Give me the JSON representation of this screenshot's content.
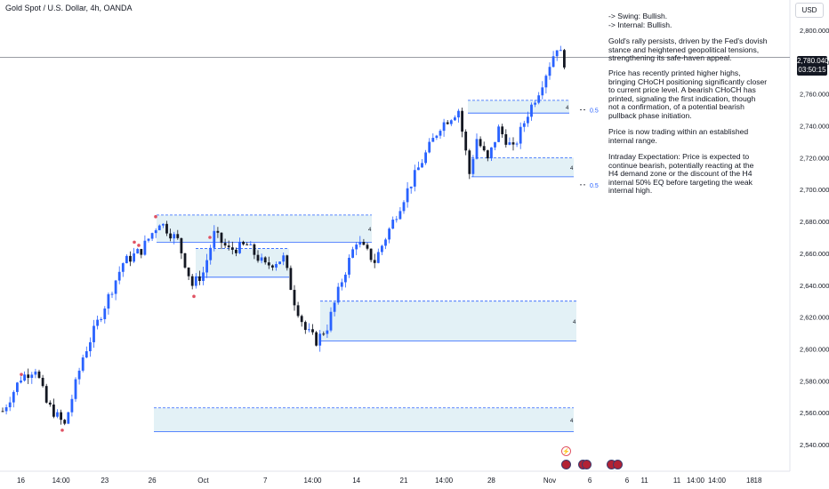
{
  "title": "Gold Spot / U.S. Dollar, 4h, OANDA",
  "currency": "USD",
  "last_price": "2,780.040",
  "countdown": "03:50:15",
  "notes": [
    [
      "-> Swing:  Bullish.",
      "-> Internal:  Bullish."
    ],
    [
      "Gold's rally persists, driven by the Fed's dovish",
      "stance and heightened geopolitical tensions,",
      "strengthening its safe-haven appeal."
    ],
    [
      "Price has recently printed higher highs,",
      "bringing CHoCH positioning significantly closer",
      "to current price level. A bearish CHoCH has",
      "printed, signaling the first indication, though",
      "not a confirmation, of a potential bearish",
      "pullback phase initiation."
    ],
    [
      "Price is now trading within an established",
      "internal range."
    ],
    [
      "Intraday Expectation: Price is expected to",
      "continue bearish, potentially reacting at the",
      "H4 demand zone or the discount of the H4",
      "internal 50% EQ before targeting the weak",
      "internal high."
    ]
  ],
  "colors": {
    "up": "#2962ff",
    "down": "#131722",
    "zone": "#e3f1f6",
    "zone_line": "#2962ff",
    "pivot": "#e05263"
  },
  "chart_data": {
    "type": "candlestick",
    "title": "Gold Spot / U.S. Dollar, 4h, OANDA",
    "y_axis": {
      "min": 2530,
      "max": 2810,
      "ticks": [
        2540,
        2560,
        2580,
        2600,
        2620,
        2640,
        2660,
        2680,
        2700,
        2720,
        2740,
        2760,
        2780,
        2800
      ],
      "tick_labels": [
        "2,540.000",
        "2,560.000",
        "2,580.000",
        "2,600.000",
        "2,620.000",
        "2,640.000",
        "2,660.000",
        "2,680.000",
        "2,700.000",
        "2,720.000",
        "2,740.000",
        "2,760.000",
        "2,780.000",
        "2,800.000"
      ]
    },
    "x_axis": {
      "labels": [
        "16",
        "14:00",
        "23",
        "26",
        "Oct",
        "7",
        "14:00",
        "14",
        "21",
        "14:00",
        "28",
        "Nov",
        "6",
        "11",
        "14:00",
        "18"
      ],
      "label_bar_index": [
        5,
        16,
        28,
        41,
        55,
        72,
        85,
        97,
        110,
        121,
        134,
        150,
        161,
        176,
        190,
        205
      ]
    },
    "key_points": [
      [
        0,
        2561
      ],
      [
        5,
        2582
      ],
      [
        9,
        2588
      ],
      [
        12,
        2566
      ],
      [
        17,
        2552
      ],
      [
        22,
        2595
      ],
      [
        27,
        2622
      ],
      [
        33,
        2654
      ],
      [
        38,
        2662
      ],
      [
        43,
        2680
      ],
      [
        48,
        2668
      ],
      [
        52,
        2640
      ],
      [
        55,
        2648
      ],
      [
        58,
        2672
      ],
      [
        62,
        2662
      ],
      [
        67,
        2665
      ],
      [
        72,
        2652
      ],
      [
        77,
        2657
      ],
      [
        80,
        2630
      ],
      [
        83,
        2612
      ],
      [
        86,
        2605
      ],
      [
        89,
        2614
      ],
      [
        93,
        2643
      ],
      [
        97,
        2668
      ],
      [
        102,
        2655
      ],
      [
        106,
        2675
      ],
      [
        110,
        2695
      ],
      [
        115,
        2718
      ],
      [
        120,
        2740
      ],
      [
        125,
        2750
      ],
      [
        128,
        2710
      ],
      [
        130,
        2732
      ],
      [
        133,
        2718
      ],
      [
        136,
        2738
      ],
      [
        140,
        2725
      ],
      [
        144,
        2748
      ],
      [
        147,
        2762
      ],
      [
        152,
        2790
      ],
      [
        154,
        2780
      ]
    ],
    "bar_count": 155,
    "horizontal_line": 2783,
    "zones": [
      {
        "from": 173,
        "to": 645,
        "top": 2563,
        "bottom": 2548,
        "label": "4"
      },
      {
        "from": 360,
        "to": 648,
        "top": 2630,
        "bottom": 2605,
        "label": "4"
      },
      {
        "from": 176,
        "to": 418,
        "top": 2684,
        "bottom": 2667,
        "label": "4"
      },
      {
        "from": 220,
        "to": 325,
        "top": 2663,
        "bottom": 2645,
        "label": ""
      },
      {
        "from": 526,
        "to": 640,
        "top": 2756,
        "bottom": 2748,
        "label": "4"
      },
      {
        "from": 530,
        "to": 645,
        "top": 2720,
        "bottom": 2708,
        "label": "4"
      }
    ],
    "eq_labels": [
      {
        "price": 2750,
        "text": "0.5"
      },
      {
        "price": 2703,
        "text": "0.5"
      }
    ],
    "pivots": [
      [
        24,
        2584
      ],
      [
        151,
        2667
      ],
      [
        175,
        2683
      ],
      [
        236,
        2670
      ],
      [
        218,
        2633
      ],
      [
        70,
        2549
      ],
      [
        156,
        2665
      ]
    ]
  }
}
